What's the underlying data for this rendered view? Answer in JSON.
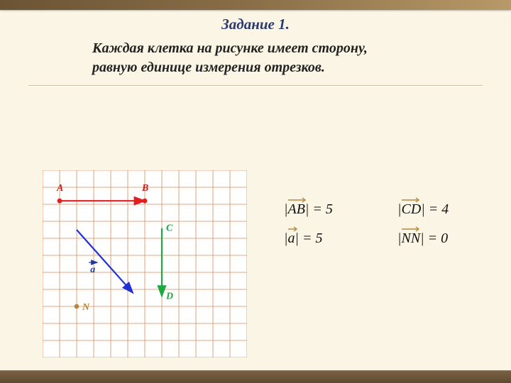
{
  "title": "Задание 1.",
  "subtitle_line1": "Каждая клетка на рисунке имеет сторону,",
  "subtitle_line2": "равную единице измерения отрезков.",
  "equations": {
    "ab": "|AB| = 5",
    "cd": "|CD| = 4",
    "a": "|a| = 5",
    "nn": "|NN| = 0"
  },
  "labels": {
    "A": "A",
    "B": "B",
    "C": "C",
    "D": "D",
    "N": "N",
    "a": "a"
  },
  "grid": {
    "cell": 24,
    "cols": 12,
    "rows": 11,
    "line_color": "#d88a56",
    "background": "#ffffff"
  },
  "colors": {
    "A": "#c41e1e",
    "B": "#c41e1e",
    "C": "#1fa83d",
    "D": "#1fa83d",
    "N": "#b7853f",
    "a_label": "#213a9a",
    "vec_AB": "#e02020",
    "vec_a": "#2131d6",
    "vec_CD": "#1fa83d",
    "dot": "#b7853f"
  },
  "points_in_cells": {
    "A": {
      "x": 1,
      "y": 1.8
    },
    "B": {
      "x": 6,
      "y": 1.8
    },
    "C": {
      "x": 7,
      "y": 3.4
    },
    "D": {
      "x": 7,
      "y": 7.4
    },
    "N": {
      "x": 2,
      "y": 8
    },
    "a_tail": {
      "x": 2,
      "y": 3.5
    },
    "a_head": {
      "x": 5.3,
      "y": 7.2
    },
    "a_label": {
      "x": 2.8,
      "y": 6.0
    }
  },
  "label_font_size": 14,
  "stroke_width": 2.2,
  "dot_radius": 3.4
}
